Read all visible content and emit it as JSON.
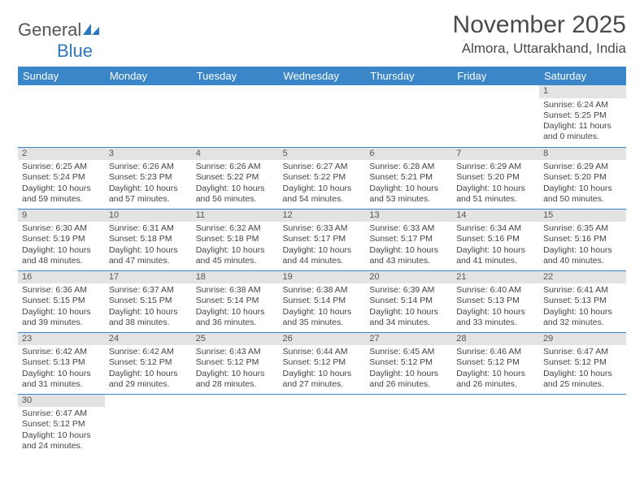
{
  "logo": {
    "text_general": "General",
    "text_blue": "Blue"
  },
  "title": "November 2025",
  "location": "Almora, Uttarakhand, India",
  "weekdays": [
    "Sunday",
    "Monday",
    "Tuesday",
    "Wednesday",
    "Thursday",
    "Friday",
    "Saturday"
  ],
  "colors": {
    "header_bg": "#3b86c8",
    "header_text": "#ffffff",
    "daynum_bg": "#e3e3e3",
    "cell_border": "#3b86c8",
    "logo_blue": "#2f78bf"
  },
  "grid": [
    [
      null,
      null,
      null,
      null,
      null,
      null,
      {
        "n": "1",
        "sunrise": "6:24 AM",
        "sunset": "5:25 PM",
        "daylight_h": "11",
        "daylight_m": "0"
      }
    ],
    [
      {
        "n": "2",
        "sunrise": "6:25 AM",
        "sunset": "5:24 PM",
        "daylight_h": "10",
        "daylight_m": "59"
      },
      {
        "n": "3",
        "sunrise": "6:26 AM",
        "sunset": "5:23 PM",
        "daylight_h": "10",
        "daylight_m": "57"
      },
      {
        "n": "4",
        "sunrise": "6:26 AM",
        "sunset": "5:22 PM",
        "daylight_h": "10",
        "daylight_m": "56"
      },
      {
        "n": "5",
        "sunrise": "6:27 AM",
        "sunset": "5:22 PM",
        "daylight_h": "10",
        "daylight_m": "54"
      },
      {
        "n": "6",
        "sunrise": "6:28 AM",
        "sunset": "5:21 PM",
        "daylight_h": "10",
        "daylight_m": "53"
      },
      {
        "n": "7",
        "sunrise": "6:29 AM",
        "sunset": "5:20 PM",
        "daylight_h": "10",
        "daylight_m": "51"
      },
      {
        "n": "8",
        "sunrise": "6:29 AM",
        "sunset": "5:20 PM",
        "daylight_h": "10",
        "daylight_m": "50"
      }
    ],
    [
      {
        "n": "9",
        "sunrise": "6:30 AM",
        "sunset": "5:19 PM",
        "daylight_h": "10",
        "daylight_m": "48"
      },
      {
        "n": "10",
        "sunrise": "6:31 AM",
        "sunset": "5:18 PM",
        "daylight_h": "10",
        "daylight_m": "47"
      },
      {
        "n": "11",
        "sunrise": "6:32 AM",
        "sunset": "5:18 PM",
        "daylight_h": "10",
        "daylight_m": "45"
      },
      {
        "n": "12",
        "sunrise": "6:33 AM",
        "sunset": "5:17 PM",
        "daylight_h": "10",
        "daylight_m": "44"
      },
      {
        "n": "13",
        "sunrise": "6:33 AM",
        "sunset": "5:17 PM",
        "daylight_h": "10",
        "daylight_m": "43"
      },
      {
        "n": "14",
        "sunrise": "6:34 AM",
        "sunset": "5:16 PM",
        "daylight_h": "10",
        "daylight_m": "41"
      },
      {
        "n": "15",
        "sunrise": "6:35 AM",
        "sunset": "5:16 PM",
        "daylight_h": "10",
        "daylight_m": "40"
      }
    ],
    [
      {
        "n": "16",
        "sunrise": "6:36 AM",
        "sunset": "5:15 PM",
        "daylight_h": "10",
        "daylight_m": "39"
      },
      {
        "n": "17",
        "sunrise": "6:37 AM",
        "sunset": "5:15 PM",
        "daylight_h": "10",
        "daylight_m": "38"
      },
      {
        "n": "18",
        "sunrise": "6:38 AM",
        "sunset": "5:14 PM",
        "daylight_h": "10",
        "daylight_m": "36"
      },
      {
        "n": "19",
        "sunrise": "6:38 AM",
        "sunset": "5:14 PM",
        "daylight_h": "10",
        "daylight_m": "35"
      },
      {
        "n": "20",
        "sunrise": "6:39 AM",
        "sunset": "5:14 PM",
        "daylight_h": "10",
        "daylight_m": "34"
      },
      {
        "n": "21",
        "sunrise": "6:40 AM",
        "sunset": "5:13 PM",
        "daylight_h": "10",
        "daylight_m": "33"
      },
      {
        "n": "22",
        "sunrise": "6:41 AM",
        "sunset": "5:13 PM",
        "daylight_h": "10",
        "daylight_m": "32"
      }
    ],
    [
      {
        "n": "23",
        "sunrise": "6:42 AM",
        "sunset": "5:13 PM",
        "daylight_h": "10",
        "daylight_m": "31"
      },
      {
        "n": "24",
        "sunrise": "6:42 AM",
        "sunset": "5:12 PM",
        "daylight_h": "10",
        "daylight_m": "29"
      },
      {
        "n": "25",
        "sunrise": "6:43 AM",
        "sunset": "5:12 PM",
        "daylight_h": "10",
        "daylight_m": "28"
      },
      {
        "n": "26",
        "sunrise": "6:44 AM",
        "sunset": "5:12 PM",
        "daylight_h": "10",
        "daylight_m": "27"
      },
      {
        "n": "27",
        "sunrise": "6:45 AM",
        "sunset": "5:12 PM",
        "daylight_h": "10",
        "daylight_m": "26"
      },
      {
        "n": "28",
        "sunrise": "6:46 AM",
        "sunset": "5:12 PM",
        "daylight_h": "10",
        "daylight_m": "26"
      },
      {
        "n": "29",
        "sunrise": "6:47 AM",
        "sunset": "5:12 PM",
        "daylight_h": "10",
        "daylight_m": "25"
      }
    ],
    [
      {
        "n": "30",
        "sunrise": "6:47 AM",
        "sunset": "5:12 PM",
        "daylight_h": "10",
        "daylight_m": "24"
      },
      null,
      null,
      null,
      null,
      null,
      null
    ]
  ],
  "labels": {
    "sunrise": "Sunrise:",
    "sunset": "Sunset:",
    "daylight": "Daylight:",
    "hours": "hours",
    "and": "and",
    "minutes": "minutes."
  }
}
